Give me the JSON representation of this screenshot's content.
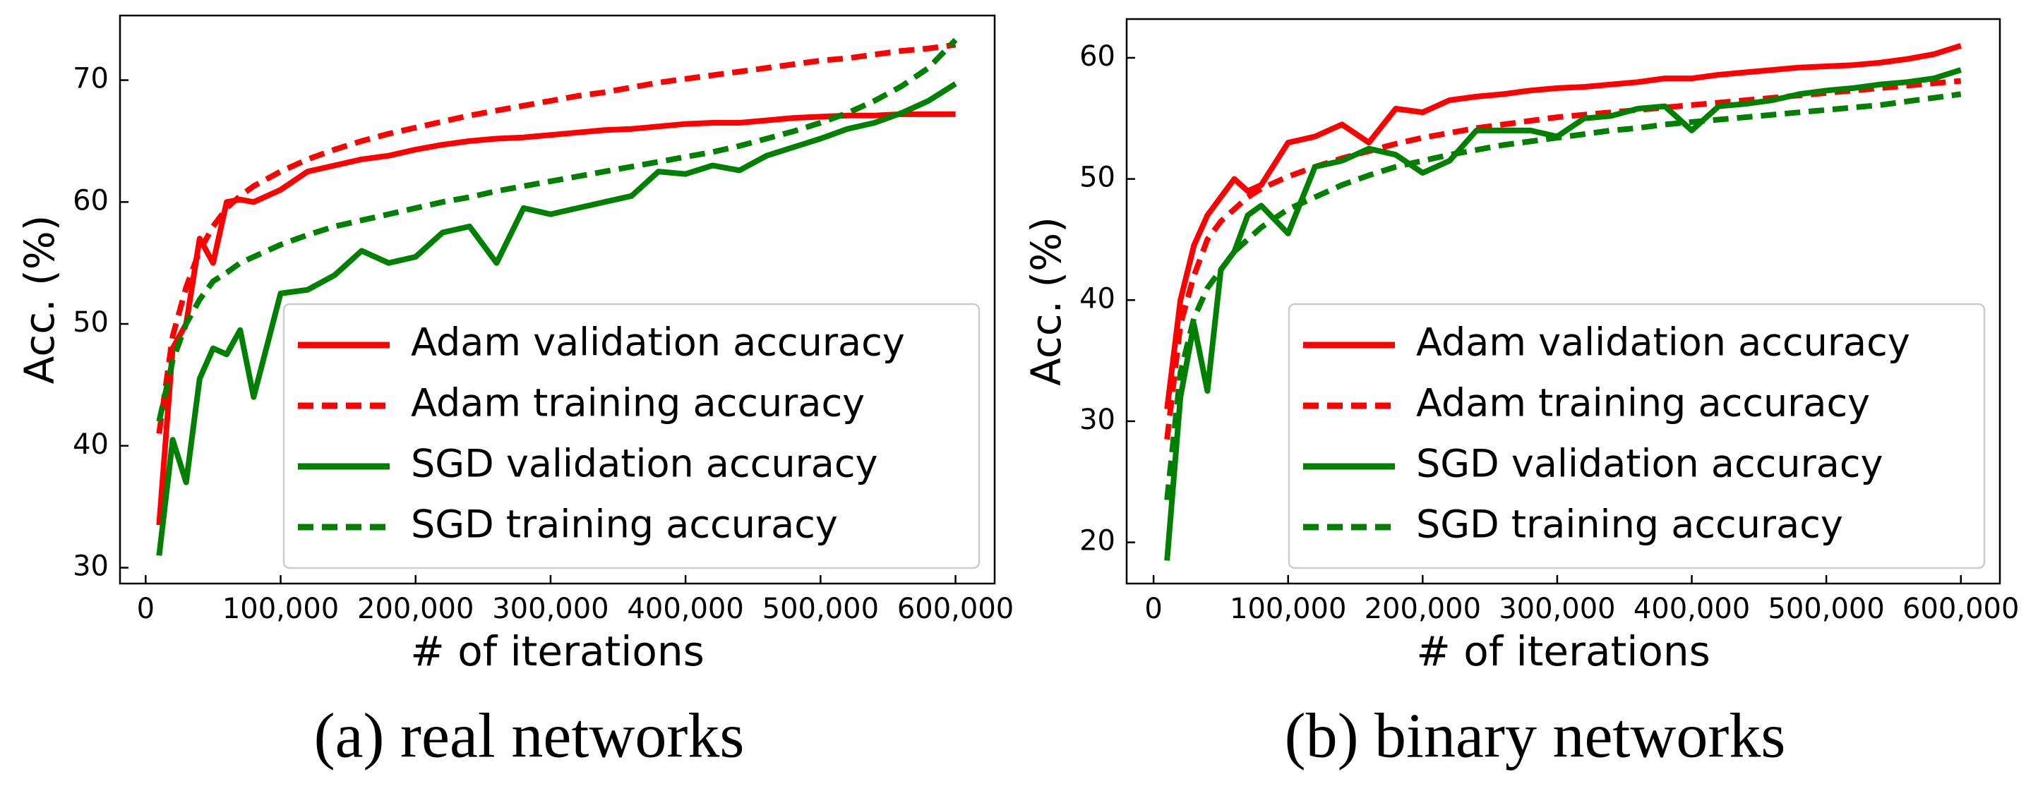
{
  "chart_data": [
    {
      "type": "line",
      "caption": "(a) real networks",
      "xlabel": "# of iterations",
      "ylabel": "Acc. (%)",
      "x": [
        10000,
        20000,
        30000,
        40000,
        50000,
        60000,
        70000,
        80000,
        100000,
        120000,
        140000,
        160000,
        180000,
        200000,
        220000,
        240000,
        260000,
        280000,
        300000,
        320000,
        340000,
        360000,
        380000,
        400000,
        420000,
        440000,
        460000,
        480000,
        500000,
        520000,
        540000,
        560000,
        580000,
        600000
      ],
      "xlim": [
        -19000,
        629000
      ],
      "xticks": [
        0,
        {
          "value": 100000,
          "label": "100,000"
        },
        {
          "value": 200000,
          "label": "200,000"
        },
        {
          "value": 300000,
          "label": "300,000"
        },
        {
          "value": 400000,
          "label": "400,000"
        },
        {
          "value": 500000,
          "label": "500,000"
        },
        {
          "value": 600000,
          "label": "600,000"
        }
      ],
      "ylim": [
        28.7,
        75.3
      ],
      "yticks": [
        30,
        40,
        50,
        60,
        70
      ],
      "legend": "lower right",
      "series": [
        {
          "name": "Adam validation accuracy",
          "color": "#ff0000",
          "linestyle": "solid",
          "values": [
            33.5,
            48,
            50,
            57,
            55,
            60,
            60.2,
            60,
            61,
            62.5,
            63,
            63.5,
            63.8,
            64.3,
            64.7,
            65,
            65.2,
            65.3,
            65.5,
            65.7,
            65.9,
            66,
            66.2,
            66.4,
            66.5,
            66.5,
            66.7,
            66.9,
            67,
            67.1,
            67.1,
            67.2,
            67.2,
            67.2
          ]
        },
        {
          "name": "Adam training accuracy",
          "color": "#ff0000",
          "linestyle": "dashed",
          "values": [
            41,
            49,
            53,
            56,
            58,
            59.5,
            60.5,
            61.3,
            62.5,
            63.5,
            64.3,
            65,
            65.6,
            66.1,
            66.6,
            67.1,
            67.5,
            67.9,
            68.3,
            68.7,
            69,
            69.4,
            69.8,
            70.1,
            70.4,
            70.7,
            71,
            71.3,
            71.6,
            71.8,
            72.1,
            72.4,
            72.6,
            72.9
          ]
        },
        {
          "name": "SGD validation accuracy",
          "color": "#008000",
          "linestyle": "solid",
          "values": [
            31,
            40.5,
            37,
            45.5,
            48,
            47.5,
            49.5,
            44,
            52.5,
            52.8,
            54,
            56,
            55,
            55.5,
            57.5,
            58,
            55,
            59.5,
            59,
            59.5,
            60,
            60.5,
            62.5,
            62.3,
            63,
            62.6,
            63.8,
            64.5,
            65.2,
            66,
            66.5,
            67.3,
            68.3,
            69.7
          ]
        },
        {
          "name": "SGD training accuracy",
          "color": "#008000",
          "linestyle": "dashed",
          "values": [
            42,
            47,
            50,
            52,
            53.5,
            54.2,
            55,
            55.5,
            56.5,
            57.3,
            58,
            58.5,
            59,
            59.5,
            60,
            60.4,
            60.9,
            61.3,
            61.7,
            62.1,
            62.5,
            62.9,
            63.3,
            63.7,
            64.1,
            64.6,
            65.2,
            65.8,
            66.5,
            67.3,
            68.3,
            69.5,
            71,
            73.3
          ]
        }
      ]
    },
    {
      "type": "line",
      "caption": "(b) binary networks",
      "xlabel": "# of iterations",
      "ylabel": "Acc. (%)",
      "x": [
        10000,
        20000,
        30000,
        40000,
        50000,
        60000,
        70000,
        80000,
        100000,
        120000,
        140000,
        160000,
        180000,
        200000,
        220000,
        240000,
        260000,
        280000,
        300000,
        320000,
        340000,
        360000,
        380000,
        400000,
        420000,
        440000,
        460000,
        480000,
        500000,
        520000,
        540000,
        560000,
        580000,
        600000
      ],
      "xlim": [
        -20000,
        629000
      ],
      "xticks": [
        0,
        {
          "value": 100000,
          "label": "100,000"
        },
        {
          "value": 200000,
          "label": "200,000"
        },
        {
          "value": 300000,
          "label": "300,000"
        },
        {
          "value": 400000,
          "label": "400,000"
        },
        {
          "value": 500000,
          "label": "500,000"
        },
        {
          "value": 600000,
          "label": "600,000"
        }
      ],
      "ylim": [
        16.6,
        63.2
      ],
      "yticks": [
        20,
        30,
        40,
        50,
        60
      ],
      "legend": "lower right",
      "series": [
        {
          "name": "Adam validation accuracy",
          "color": "#ff0000",
          "linestyle": "solid",
          "values": [
            31,
            40,
            44.5,
            47,
            48.5,
            50,
            49,
            49.5,
            53,
            53.5,
            54.5,
            53,
            55.8,
            55.5,
            56.5,
            56.8,
            57,
            57.3,
            57.5,
            57.6,
            57.8,
            58,
            58.3,
            58.3,
            58.6,
            58.8,
            59,
            59.2,
            59.3,
            59.4,
            59.6,
            59.9,
            60.3,
            61
          ]
        },
        {
          "name": "Adam training accuracy",
          "color": "#ff0000",
          "linestyle": "dashed",
          "values": [
            28.5,
            38,
            42,
            45,
            46.5,
            47.5,
            48.5,
            49.2,
            50.2,
            51,
            51.7,
            52.3,
            52.9,
            53.4,
            53.8,
            54.2,
            54.5,
            54.8,
            55.1,
            55.3,
            55.5,
            55.7,
            55.9,
            56.1,
            56.3,
            56.5,
            56.7,
            56.9,
            57.1,
            57.3,
            57.5,
            57.7,
            57.9,
            58.1
          ]
        },
        {
          "name": "SGD validation accuracy",
          "color": "#008000",
          "linestyle": "solid",
          "values": [
            18.5,
            32,
            38,
            32.5,
            42.5,
            44,
            47,
            47.8,
            45.5,
            51,
            51.5,
            52.5,
            52,
            50.5,
            51.5,
            54,
            54,
            54,
            53.5,
            55,
            55.2,
            55.8,
            56,
            54,
            56,
            56.2,
            56.5,
            57,
            57.3,
            57.5,
            57.8,
            58,
            58.3,
            59
          ]
        },
        {
          "name": "SGD training accuracy",
          "color": "#008000",
          "linestyle": "dashed",
          "values": [
            23.5,
            34,
            38.5,
            41,
            42.5,
            44,
            45,
            46,
            47.5,
            48.5,
            49.5,
            50.3,
            51,
            51.5,
            52,
            52.4,
            52.8,
            53.1,
            53.4,
            53.7,
            54,
            54.2,
            54.5,
            54.7,
            54.9,
            55.1,
            55.3,
            55.5,
            55.7,
            55.9,
            56.1,
            56.4,
            56.7,
            57
          ]
        }
      ]
    }
  ]
}
